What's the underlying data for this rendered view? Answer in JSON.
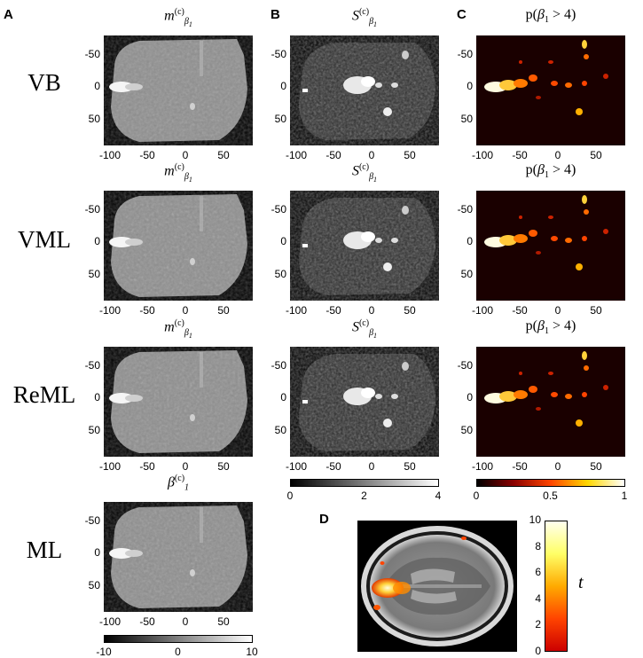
{
  "figure": {
    "panels": [
      "A",
      "B",
      "C",
      "D"
    ],
    "row_labels": [
      "VB",
      "VML",
      "ReML",
      "ML"
    ],
    "col_a_titles": [
      {
        "base": "m",
        "sup": "(c)",
        "sub": "β",
        "subsub": "1"
      },
      {
        "base": "m",
        "sup": "(c)",
        "sub": "β",
        "subsub": "1"
      },
      {
        "base": "m",
        "sup": "(c)",
        "sub": "β",
        "subsub": "1"
      },
      {
        "base": "β",
        "sup": "(c)",
        "sub": "1",
        "subsub": ""
      }
    ],
    "col_b_title": {
      "base": "S",
      "sup": "(c)",
      "sub": "β",
      "subsub": "1"
    },
    "col_c_title": {
      "pre": "p(",
      "var": "β",
      "sub": "1",
      "post": " > 4)"
    },
    "x_ticks": [
      "-100",
      "-50",
      "0",
      "50"
    ],
    "y_ticks": [
      "-50",
      "0",
      "50"
    ],
    "colorbar_a": {
      "ticks": [
        "-10",
        "0",
        "10"
      ],
      "colors": [
        "#000000",
        "#ffffff"
      ]
    },
    "colorbar_b": {
      "ticks": [
        "0",
        "2",
        "4"
      ],
      "colors": [
        "#000000",
        "#ffffff"
      ]
    },
    "colorbar_c": {
      "ticks": [
        "0",
        "0.5",
        "1"
      ],
      "colors": [
        "#000000",
        "#8b0000",
        "#ff4500",
        "#ffd700",
        "#ffffff"
      ]
    },
    "colorbar_d": {
      "ticks": [
        "0",
        "2",
        "4",
        "6",
        "8",
        "10"
      ],
      "label": "t",
      "colors": [
        "#cc0000",
        "#ff4400",
        "#ffaa00",
        "#ffff66",
        "#ffffee"
      ]
    }
  }
}
